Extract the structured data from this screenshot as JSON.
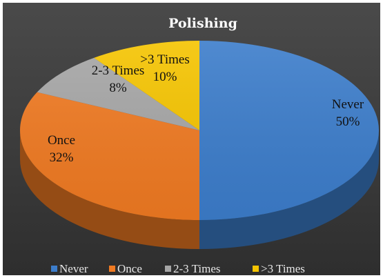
{
  "chart_data": {
    "type": "pie",
    "title": "Polishing",
    "categories": [
      "Never",
      "Once",
      "2-3 Times",
      ">3 Times"
    ],
    "values": [
      50,
      32,
      8,
      10
    ],
    "data_labels": [
      "50%",
      "32%",
      "8%",
      "10%"
    ],
    "colors": [
      "#3c7dcb",
      "#f07a22",
      "#a6a6a6",
      "#f5c400"
    ],
    "style": "3d",
    "legend": "bottom"
  }
}
